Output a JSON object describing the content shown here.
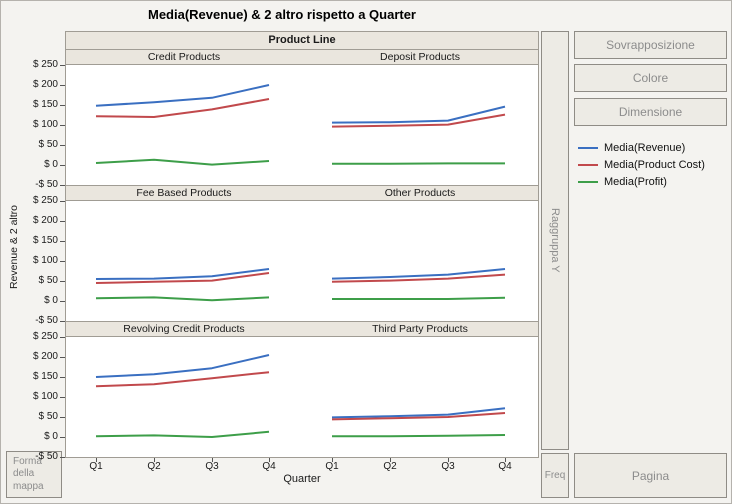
{
  "title": "Media(Revenue) & 2 altro rispetto a Quarter",
  "facet_header": "Product Line",
  "y_axis_label": "Revenue & 2 altro",
  "x_axis_label": "Quarter",
  "controls": {
    "overlay": "Sovrapposizione",
    "color": "Colore",
    "size": "Dimensione",
    "group_y": "Raggruppa Y",
    "freq": "Freq",
    "page": "Pagina",
    "map_shape_lines": [
      "Forma",
      "della",
      "mappa"
    ]
  },
  "legend": [
    {
      "label": "Media(Revenue)",
      "color": "#3a6fc1"
    },
    {
      "label": "Media(Product Cost)",
      "color": "#c1494c"
    },
    {
      "label": "Media(Profit)",
      "color": "#3d9e49"
    }
  ],
  "chart_data": {
    "type": "line",
    "x": [
      "Q1",
      "Q2",
      "Q3",
      "Q4"
    ],
    "ylim": [
      -50,
      250
    ],
    "ytick_values": [
      250,
      200,
      150,
      100,
      50,
      0,
      -50
    ],
    "ytick_labels": [
      "$ 250",
      "$ 200",
      "$ 150",
      "$ 100",
      "$ 50",
      "$ 0",
      "-$ 50"
    ],
    "facet_variable": "Product Line",
    "legend_position": "right",
    "grid": false,
    "panels": [
      {
        "name": "Credit Products",
        "series": [
          {
            "name": "Media(Revenue)",
            "values": [
              148,
              157,
              168,
              200
            ]
          },
          {
            "name": "Media(Product Cost)",
            "values": [
              122,
              120,
              139,
              165
            ]
          },
          {
            "name": "Media(Profit)",
            "values": [
              5,
              13,
              1,
              10
            ]
          }
        ]
      },
      {
        "name": "Deposit Products",
        "series": [
          {
            "name": "Media(Revenue)",
            "values": [
              106,
              107,
              111,
              146
            ]
          },
          {
            "name": "Media(Product Cost)",
            "values": [
              96,
              98,
              101,
              126
            ]
          },
          {
            "name": "Media(Profit)",
            "values": [
              3,
              3,
              4,
              4
            ]
          }
        ]
      },
      {
        "name": "Fee Based Products",
        "series": [
          {
            "name": "Media(Revenue)",
            "values": [
              55,
              56,
              62,
              80
            ]
          },
          {
            "name": "Media(Product Cost)",
            "values": [
              45,
              48,
              51,
              70
            ]
          },
          {
            "name": "Media(Profit)",
            "values": [
              7,
              9,
              2,
              9
            ]
          }
        ]
      },
      {
        "name": "Other Products",
        "series": [
          {
            "name": "Media(Revenue)",
            "values": [
              56,
              60,
              66,
              80
            ]
          },
          {
            "name": "Media(Product Cost)",
            "values": [
              48,
              51,
              56,
              66
            ]
          },
          {
            "name": "Media(Profit)",
            "values": [
              5,
              5,
              5,
              8
            ]
          }
        ]
      },
      {
        "name": "Revolving Credit Products",
        "series": [
          {
            "name": "Media(Revenue)",
            "values": [
              150,
              157,
              172,
              205
            ]
          },
          {
            "name": "Media(Product Cost)",
            "values": [
              127,
              132,
              147,
              162
            ]
          },
          {
            "name": "Media(Profit)",
            "values": [
              2,
              4,
              0,
              13
            ]
          }
        ]
      },
      {
        "name": "Third Party Products",
        "series": [
          {
            "name": "Media(Revenue)",
            "values": [
              49,
              52,
              56,
              72
            ]
          },
          {
            "name": "Media(Product Cost)",
            "values": [
              44,
              47,
              50,
              60
            ]
          },
          {
            "name": "Media(Profit)",
            "values": [
              2,
              2,
              3,
              5
            ]
          }
        ]
      }
    ]
  }
}
